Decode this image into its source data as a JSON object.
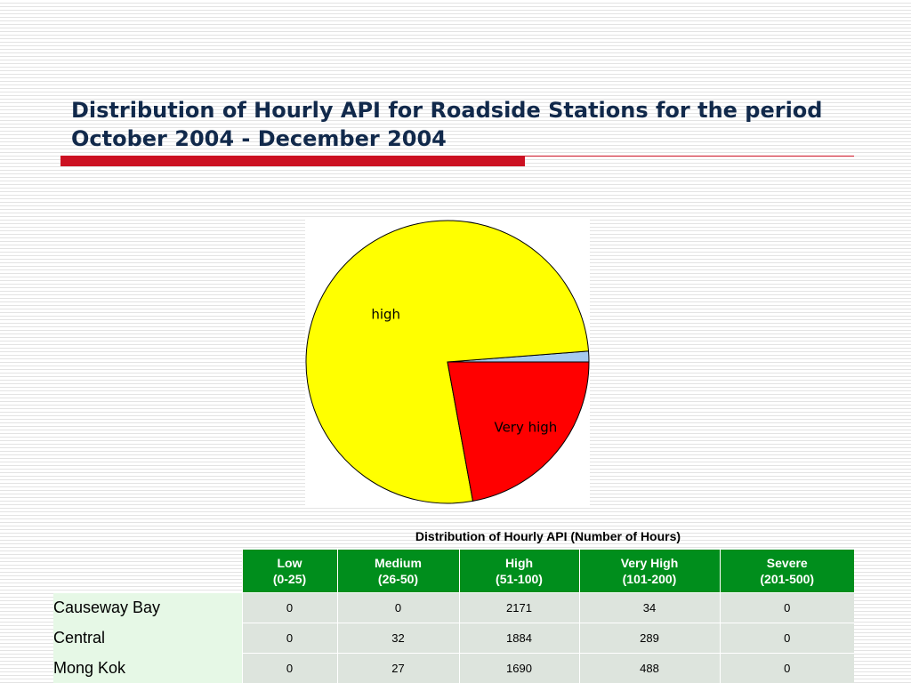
{
  "slide": {
    "title": "Distribution of Hourly API for Roadside Stations for the period October 2004 - December 2004"
  },
  "chart_data": [
    {
      "type": "pie",
      "title": "",
      "series": [
        {
          "labels": [
            "Low",
            "Medium",
            "High",
            "Very High",
            "Severe"
          ],
          "values": [
            0,
            27,
            1690,
            488,
            0
          ]
        }
      ],
      "slice_colors": [
        "#aa88ff",
        "#a6caf0",
        "#ffff00",
        "#ff0000",
        "#800000"
      ],
      "slice_labels": [
        {
          "slice": "High",
          "text": "high"
        },
        {
          "slice": "Very High",
          "text": "Very high"
        }
      ]
    },
    {
      "type": "table",
      "caption": "Distribution of Hourly API (Number of Hours)",
      "columns": [
        {
          "name": "Low",
          "range": "(0-25)"
        },
        {
          "name": "Medium",
          "range": "(26-50)"
        },
        {
          "name": "High",
          "range": "(51-100)"
        },
        {
          "name": "Very High",
          "range": "(101-200)"
        },
        {
          "name": "Severe",
          "range": "(201-500)"
        }
      ],
      "rows": [
        {
          "station": "Causeway Bay",
          "values": [
            "0",
            "0",
            "2171",
            "34",
            "0"
          ]
        },
        {
          "station": "Central",
          "values": [
            "0",
            "32",
            "1884",
            "289",
            "0"
          ]
        },
        {
          "station": "Mong Kok",
          "values": [
            "0",
            "27",
            "1690",
            "488",
            "0"
          ]
        }
      ]
    }
  ]
}
